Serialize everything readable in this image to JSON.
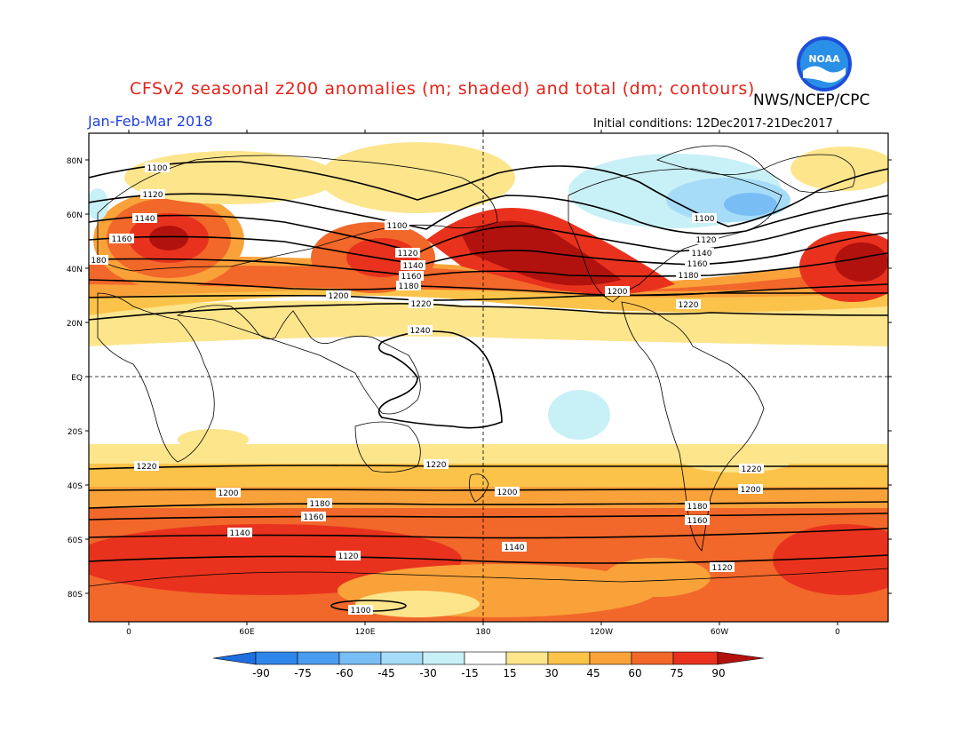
{
  "header": {
    "title": "CFSv2 seasonal z200 anomalies (m; shaded) and total (dm; contours)",
    "agency": "NWS/NCEP/CPC",
    "period": "Jan-Feb-Mar 2018",
    "initial_conditions": "Initial conditions: 12Dec2017-21Dec2017",
    "logo_text": "NOAA"
  },
  "map": {
    "lat_ticks": [
      "80N",
      "60N",
      "40N",
      "20N",
      "EQ",
      "20S",
      "40S",
      "60S",
      "80S"
    ],
    "lon_ticks": [
      "0",
      "60E",
      "120E",
      "180",
      "120W",
      "60W",
      "0"
    ],
    "contour_labels": [
      "1100",
      "1120",
      "1140",
      "1160",
      "1180",
      "1200",
      "1220",
      "1240"
    ]
  },
  "colorbar": {
    "ticks": [
      "-90",
      "-75",
      "-60",
      "-45",
      "-30",
      "-15",
      "15",
      "30",
      "45",
      "60",
      "75",
      "90"
    ],
    "colors": [
      "#1f6fe0",
      "#2f86ea",
      "#4a9cf0",
      "#79bdf5",
      "#a6dcf7",
      "#c8f0f7",
      "#ffffff",
      "#fde58c",
      "#fcc34a",
      "#f9a23a",
      "#f2672a",
      "#e8321e",
      "#b2120e"
    ]
  }
}
